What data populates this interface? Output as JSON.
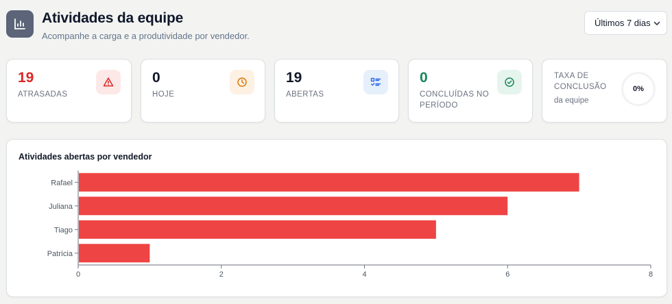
{
  "header": {
    "title": "Atividades da equipe",
    "subtitle": "Acompanhe a carga e a produtividade por vendedor.",
    "icon": "bar-chart-icon"
  },
  "period_filter": {
    "selected": "Últimos 7 dias"
  },
  "kpis": [
    {
      "value": "19",
      "label": "ATRASADAS",
      "icon": "warning-icon",
      "color": "#dc2626",
      "badge_bg": "#fde8e8"
    },
    {
      "value": "0",
      "label": "HOJE",
      "icon": "clock-icon",
      "color": "#111827",
      "badge_bg": "#fdf1e3"
    },
    {
      "value": "19",
      "label": "ABERTAS",
      "icon": "checklist-icon",
      "color": "#111827",
      "badge_bg": "#e6f0fb"
    },
    {
      "value": "0",
      "label": "CONCLUÍDAS NO PERÍODO",
      "icon": "check-circle-icon",
      "color": "#16875a",
      "badge_bg": "#e6f4ee"
    }
  ],
  "completion": {
    "label": "TAXA DE CONCLUSÃO",
    "sublabel": "da equipe",
    "value": "0%",
    "fraction": 0
  },
  "chart_data": {
    "type": "bar",
    "orientation": "horizontal",
    "title": "Atividades abertas por vendedor",
    "categories": [
      "Rafael",
      "Juliana",
      "Tiago",
      "Patrícia"
    ],
    "values": [
      7,
      6,
      5,
      1
    ],
    "xlim": [
      0,
      8
    ],
    "xticks": [
      "0",
      "2",
      "4",
      "6",
      "8"
    ],
    "bar_color": "#ef4444",
    "grid": false
  }
}
